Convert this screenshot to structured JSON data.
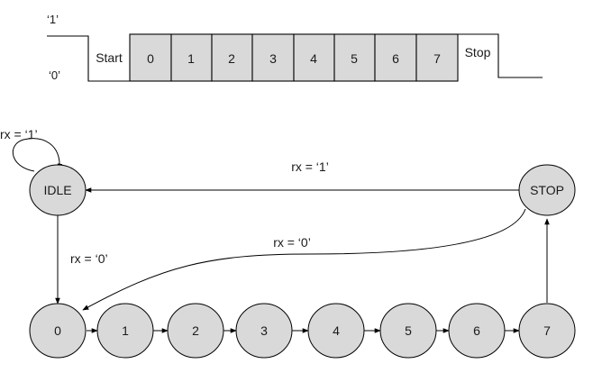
{
  "timing": {
    "level_high": "‘1’",
    "level_low": "‘0’",
    "start_label": "Start",
    "stop_label": "Stop",
    "bits": [
      "0",
      "1",
      "2",
      "3",
      "4",
      "5",
      "6",
      "7"
    ]
  },
  "states": {
    "idle": "IDLE",
    "stop": "STOP",
    "bits": [
      "0",
      "1",
      "2",
      "3",
      "4",
      "5",
      "6",
      "7"
    ]
  },
  "transitions": {
    "idle_self": "rx = ‘1’",
    "stop_to_idle": "rx = ‘1’",
    "stop_to_bit0": "rx = ‘0’",
    "idle_to_bit0": "rx = ‘0’"
  },
  "colors": {
    "fill": "#d9d9d9",
    "stroke": "#000000"
  }
}
